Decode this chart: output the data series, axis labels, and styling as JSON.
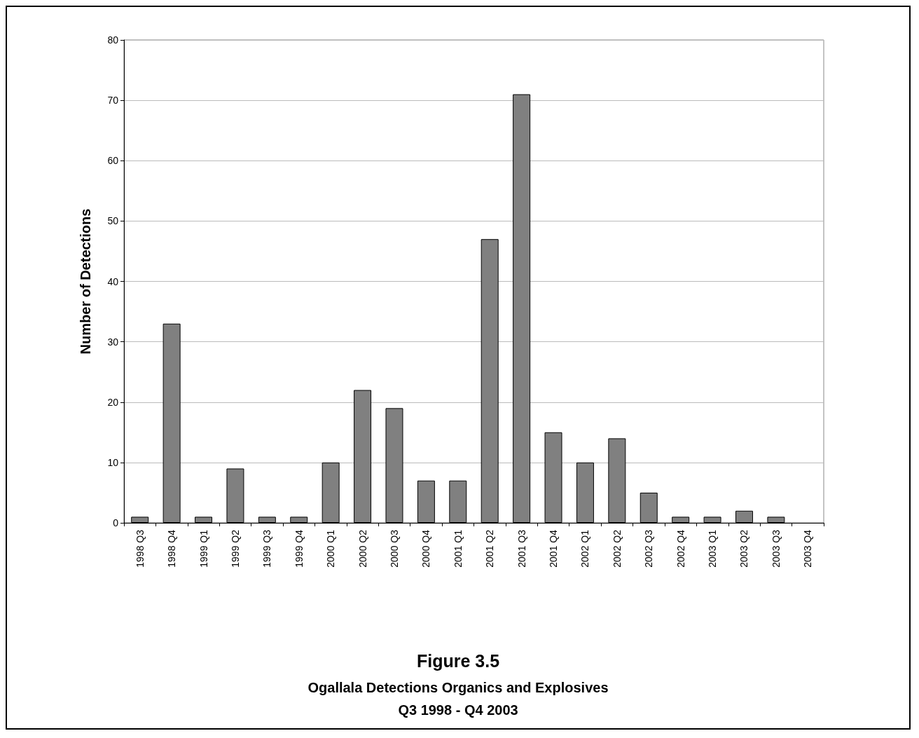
{
  "chart_data": {
    "type": "bar",
    "title": "Figure 3.5",
    "subtitle": "Ogallala Detections Organics and Explosives\nQ3 1998 - Q4 2003",
    "ylabel": "Number of Detections",
    "categories": [
      "1998 Q3",
      "1998 Q4",
      "1999 Q1",
      "1999 Q2",
      "1999 Q3",
      "1999 Q4",
      "2000 Q1",
      "2000 Q2",
      "2000 Q3",
      "2000 Q4",
      "2001 Q1",
      "2001 Q2",
      "2001 Q3",
      "2001 Q4",
      "2002 Q1",
      "2002 Q2",
      "2002 Q3",
      "2002 Q4",
      "2003 Q1",
      "2003 Q2",
      "2003 Q3",
      "2003 Q4"
    ],
    "values": [
      1,
      33,
      1,
      9,
      1,
      1,
      10,
      22,
      19,
      7,
      7,
      47,
      71,
      15,
      10,
      14,
      5,
      1,
      1,
      2,
      1,
      0
    ],
    "color": "#808080",
    "ylim": [
      0,
      80
    ],
    "yticks": [
      0,
      10,
      20,
      30,
      40,
      50,
      60,
      70,
      80
    ],
    "grid": "y"
  }
}
